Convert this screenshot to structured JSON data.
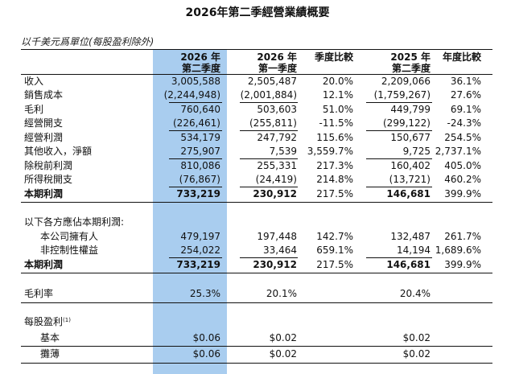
{
  "title": "2026年第二季經營業績概要",
  "unit_note": "以千美元爲單位(每股盈利除外)",
  "headers": {
    "c1": [
      "2026 年",
      "第二季度"
    ],
    "c2": [
      "2026 年",
      "第一季度"
    ],
    "c3": [
      "季度比較"
    ],
    "c4": [
      "2025 年",
      "第二季度"
    ],
    "c5": [
      "年度比較"
    ]
  },
  "rows": [
    {
      "label": "收入",
      "c1": "3,005,588",
      "c2": "2,505,487",
      "c3": "20.0%",
      "c4": "2,209,066",
      "c5": "36.1%"
    },
    {
      "label": "銷售成本",
      "c1": "(2,244,948)",
      "c2": "(2,001,884)",
      "c3": "12.1%",
      "c4": "(1,759,267)",
      "c5": "27.6%"
    },
    {
      "label": "毛利",
      "c1": "760,640",
      "c2": "503,603",
      "c3": "51.0%",
      "c4": "449,799",
      "c5": "69.1%"
    },
    {
      "label": "經營開支",
      "c1": "(226,461)",
      "c2": "(255,811)",
      "c3": "-11.5%",
      "c4": "(299,122)",
      "c5": "-24.3%"
    },
    {
      "label": "經營利潤",
      "c1": "534,179",
      "c2": "247,792",
      "c3": "115.6%",
      "c4": "150,677",
      "c5": "254.5%"
    },
    {
      "label": "其他收入，淨額",
      "c1": "275,907",
      "c2": "7,539",
      "c3": "3,559.7%",
      "c4": "9,725",
      "c5": "2,737.1%"
    },
    {
      "label": "除稅前利潤",
      "c1": "810,086",
      "c2": "255,331",
      "c3": "217.3%",
      "c4": "160,402",
      "c5": "405.0%"
    },
    {
      "label": "所得稅開支",
      "c1": "(76,867)",
      "c2": "(24,419)",
      "c3": "214.8%",
      "c4": "(13,721)",
      "c5": "460.2%"
    },
    {
      "label": "本期利潤",
      "c1": "733,219",
      "c2": "230,912",
      "c3": "217.5%",
      "c4": "146,681",
      "c5": "399.9%"
    }
  ],
  "attrib": {
    "heading": "以下各方應佔本期利潤:",
    "rows": [
      {
        "label": "本公司擁有人",
        "c1": "479,197",
        "c2": "197,448",
        "c3": "142.7%",
        "c4": "132,487",
        "c5": "261.7%"
      },
      {
        "label": "非控制性權益",
        "c1": "254,022",
        "c2": "33,464",
        "c3": "659.1%",
        "c4": "14,194",
        "c5": "1,689.6%"
      },
      {
        "label": "本期利潤",
        "c1": "733,219",
        "c2": "230,912",
        "c3": "217.5%",
        "c4": "146,681",
        "c5": "399.9%"
      }
    ]
  },
  "gross_margin": {
    "label": "毛利率",
    "c1": "25.3%",
    "c2": "20.1%",
    "c4": "20.4%"
  },
  "eps": {
    "heading": "每股盈利",
    "footnote_mark": "(1)",
    "rows": [
      {
        "label": "基本",
        "c1": "$0.06",
        "c2": "$0.02",
        "c4": "$0.02"
      },
      {
        "label": "攤薄",
        "c1": "$0.06",
        "c2": "$0.02",
        "c4": "$0.02"
      }
    ]
  }
}
